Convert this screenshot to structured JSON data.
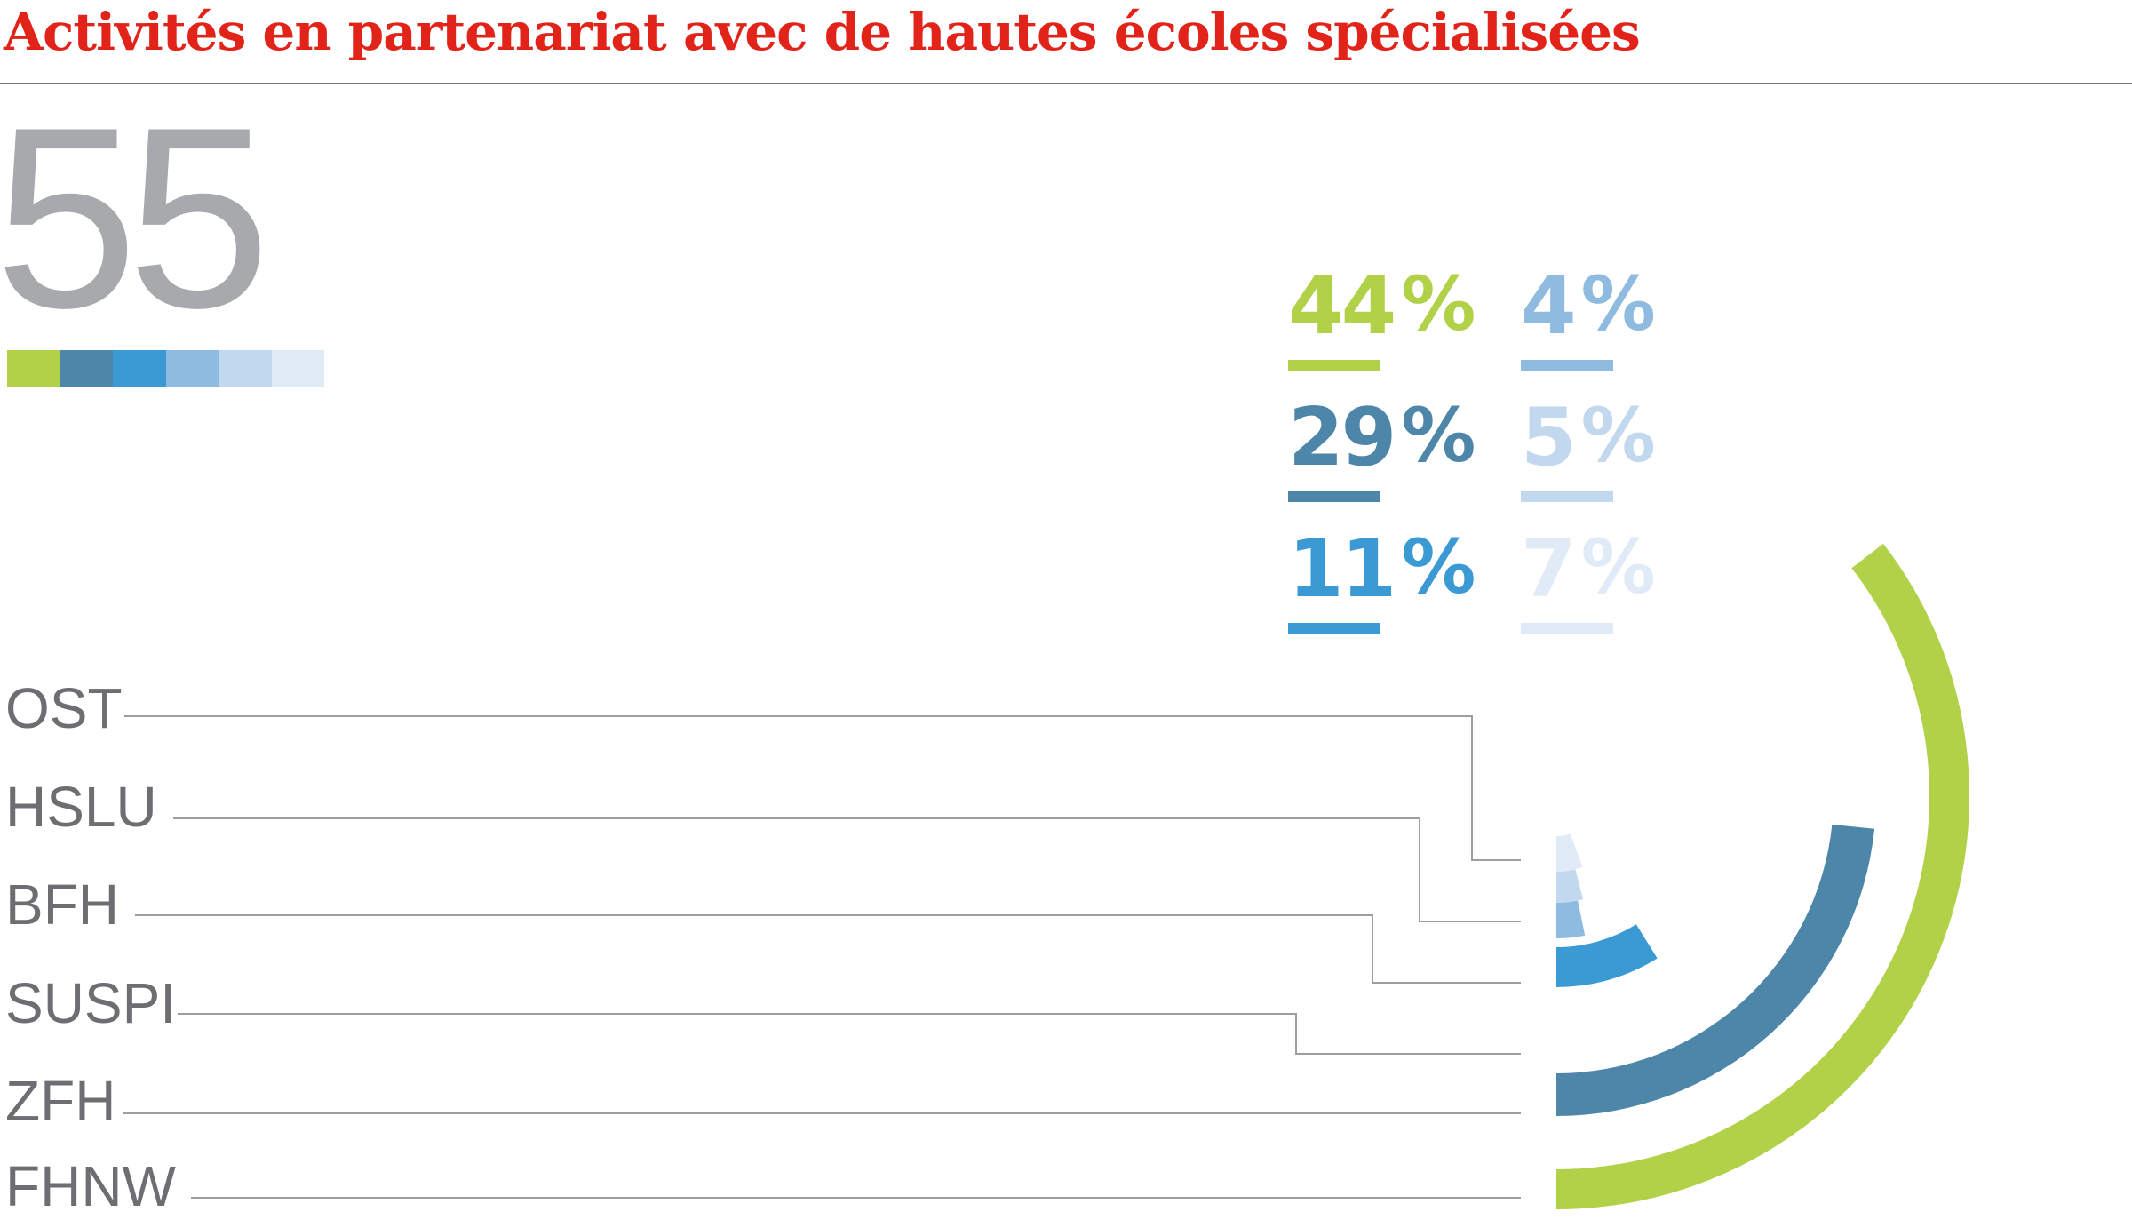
{
  "title": "Activités en partenariat avec de hautes écoles spécialisées",
  "total": "55",
  "chart_data": {
    "type": "pie",
    "title": "Activités en partenariat avec de hautes écoles spécialisées",
    "total": 55,
    "unit": "%",
    "categories": [
      "FHNW",
      "ZFH",
      "SUSPI",
      "BFH",
      "HSLU",
      "OST"
    ],
    "values": [
      44,
      29,
      11,
      4,
      5,
      7
    ],
    "colors": [
      "#b0d148",
      "#4d86a9",
      "#3b9ad3",
      "#90bbe0",
      "#c1d8ee",
      "#e1ebf7"
    ],
    "labels": [
      "44",
      "29",
      "11",
      "4",
      "5",
      "7"
    ]
  }
}
